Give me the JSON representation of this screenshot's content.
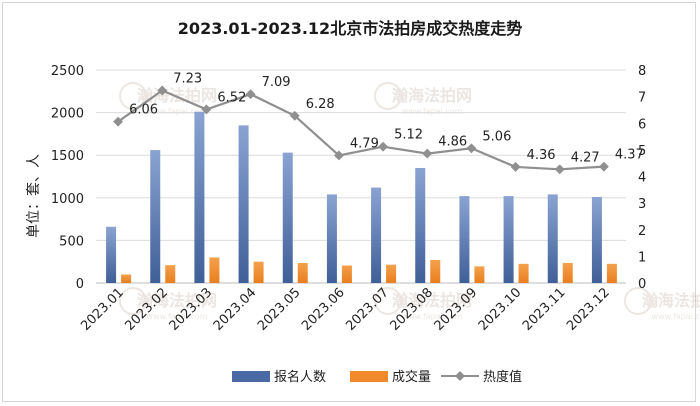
{
  "chart_data": {
    "type": "bar+line",
    "title": "2023.01-2023.12北京市法拍房成交热度走势",
    "ylabel_left": "单位：套、人",
    "categories": [
      "2023.01",
      "2023.02",
      "2023.03",
      "2023.04",
      "2023.05",
      "2023.06",
      "2023.07",
      "2023.08",
      "2023.09",
      "2023.10",
      "2023.11",
      "2023.12"
    ],
    "series": [
      {
        "name": "报名人数",
        "kind": "bar",
        "axis": "left",
        "color": "#4a6aa5",
        "values": [
          660,
          1560,
          2010,
          1850,
          1530,
          1040,
          1120,
          1350,
          1020,
          1020,
          1040,
          1010
        ]
      },
      {
        "name": "成交量",
        "kind": "bar",
        "axis": "left",
        "color": "#f08a2c",
        "values": [
          100,
          210,
          300,
          250,
          235,
          205,
          215,
          270,
          195,
          225,
          235,
          225
        ]
      },
      {
        "name": "热度值",
        "kind": "line",
        "axis": "right",
        "color": "#8f8f8f",
        "values": [
          6.06,
          7.23,
          6.52,
          7.09,
          6.28,
          4.79,
          5.12,
          4.86,
          5.06,
          4.36,
          4.27,
          4.37
        ],
        "labels": [
          "6.06",
          "7.23",
          "6.52",
          "7.09",
          "6.28",
          "4.79",
          "5.12",
          "4.86",
          "5.06",
          "4.36",
          "4.27",
          "4.37"
        ]
      }
    ],
    "y_left": {
      "min": 0,
      "max": 2500,
      "ticks": [
        "0",
        "500",
        "1000",
        "1500",
        "2000",
        "2500"
      ]
    },
    "y_right": {
      "min": 0,
      "max": 8,
      "ticks": [
        "0",
        "1",
        "2",
        "3",
        "4",
        "5",
        "6",
        "7",
        "8"
      ]
    },
    "legend_position": "bottom",
    "watermark": {
      "name": "瀚海法拍网",
      "url": "www.fapai.com"
    }
  }
}
